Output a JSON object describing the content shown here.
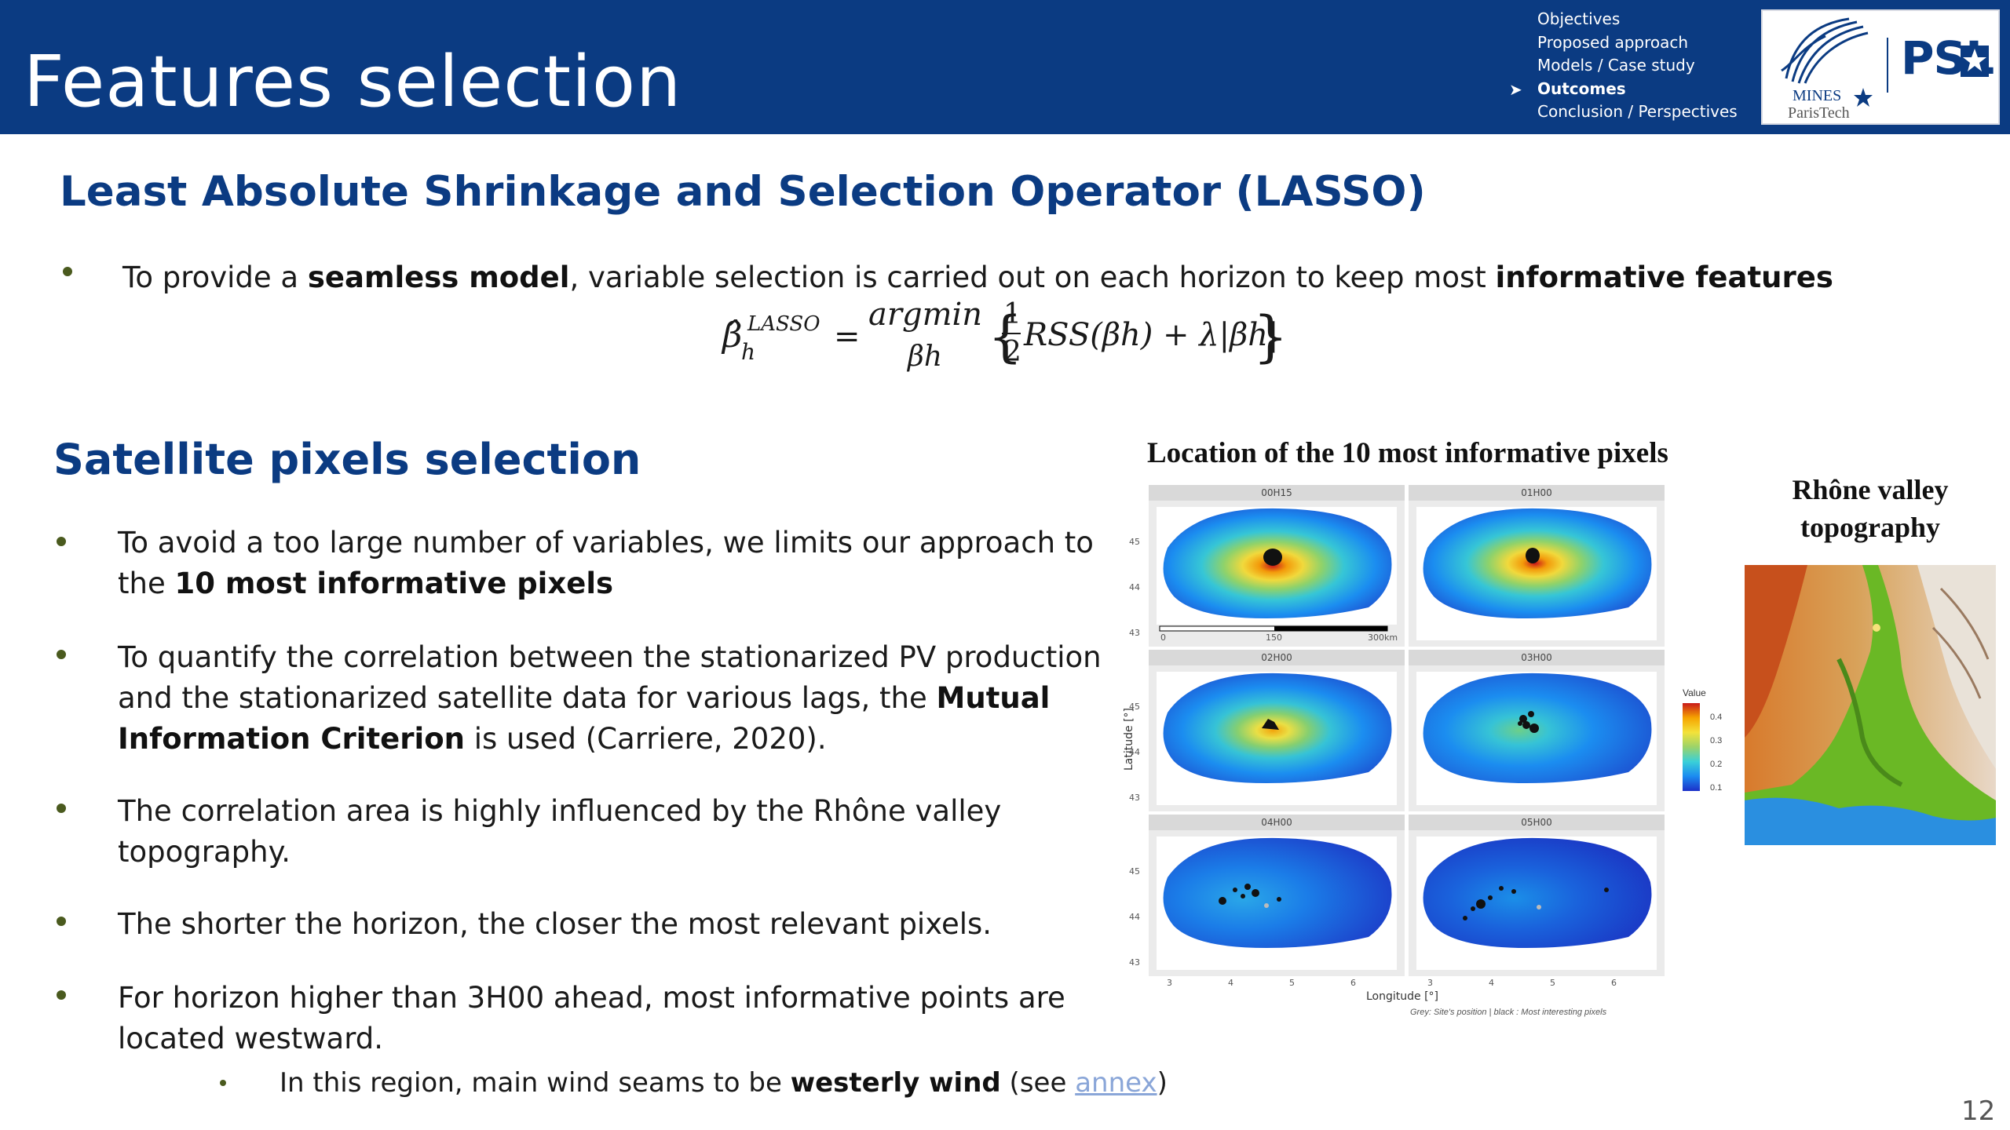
{
  "header": {
    "title": "Features selection",
    "nav": [
      {
        "label": "Objectives",
        "active": false
      },
      {
        "label": "Proposed approach",
        "active": false
      },
      {
        "label": "Models / Case study",
        "active": false
      },
      {
        "label": "Outcomes",
        "active": true
      },
      {
        "label": "Conclusion / Perspectives",
        "active": false
      }
    ],
    "nav_arrow": "➤",
    "logo_mines_text_1": "MINES",
    "logo_mines_text_2": "ParisTech",
    "logo_psl_text": "PSL"
  },
  "section1": {
    "heading": "Least Absolute Shrinkage and Selection Operator (LASSO)",
    "bullet": {
      "pre": "To provide a ",
      "b1": "seamless model",
      "mid": ", variable selection is carried out on each horizon to keep most ",
      "b2": "informative features"
    },
    "formula": {
      "lhs": "β̂",
      "sub": "h",
      "sup": "LASSO",
      "eq": "=",
      "op": "argmin",
      "op_sub": "βh",
      "frac_num": "1",
      "frac_den": "2",
      "body": "RSS(βh) + λ|βh|"
    }
  },
  "section2": {
    "heading": "Satellite pixels selection",
    "bullets": [
      {
        "line1": "To avoid a too large number of variables, we limits our approach to",
        "line2_pre": "the ",
        "line2_bold": "10 most informative pixels"
      },
      {
        "line1": "To quantify the correlation between the stationarized PV production",
        "line2_pre": "and the stationarized satellite data for various lags, the ",
        "line2_bold": "Mutual",
        "line3_bold": "Information Criterion",
        "line3_post": " is used (Carriere, 2020)."
      },
      {
        "line1": "The correlation area is highly influenced by the Rhône valley",
        "line2": "topography."
      },
      {
        "line1": "The shorter the horizon, the closer the most relevant pixels."
      },
      {
        "line1": "For horizon higher than 3H00 ahead, most informative points are",
        "line2": "located westward."
      }
    ],
    "sub_bullet": {
      "pre": "In this region, main wind seams to be ",
      "bold": "westerly wind",
      "mid": " (see ",
      "link": "annex",
      "post": ")"
    }
  },
  "figure": {
    "title": "Location of the 10 most informative pixels",
    "facets": [
      "00H15",
      "01H00",
      "02H00",
      "03H00",
      "04H00",
      "05H00"
    ],
    "y_ticks": [
      "45",
      "44",
      "43"
    ],
    "x_ticks": [
      "3",
      "4",
      "5",
      "6"
    ],
    "y_label": "Latitude [°]",
    "x_label": "Longitude [°]",
    "scale_labels": [
      "0",
      "150",
      "300km"
    ],
    "legend_title": "Value",
    "legend_ticks": [
      "0.4",
      "0.3",
      "0.2",
      "0.1"
    ],
    "caption": "Grey: Site's position | black : Most interesting pixels"
  },
  "topography": {
    "title_line1": "Rhône valley",
    "title_line2": "topography"
  },
  "page_number": "12"
}
